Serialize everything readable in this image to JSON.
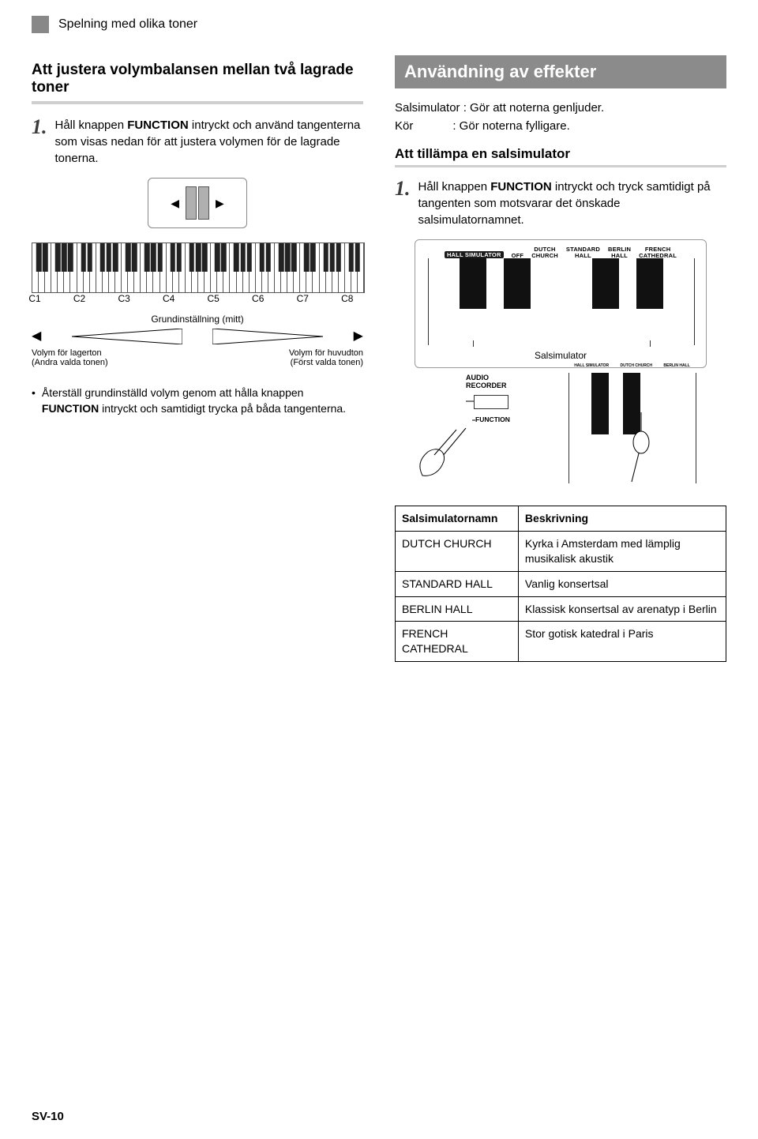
{
  "top_header": "Spelning med olika toner",
  "left": {
    "heading": "Att justera volymbalansen mellan två lagrade toner",
    "step1_num": "1.",
    "step1_pre": "Håll knappen ",
    "step1_kw": "FUNCTION",
    "step1_post": " intryckt och använd tangenterna som visas nedan för att justera volymen för de lagrade tonerna.",
    "kb": {
      "octaves": [
        "C1",
        "C2",
        "C3",
        "C4",
        "C5",
        "C6",
        "C7",
        "C8"
      ],
      "mid_label": "Grundinställning (mitt)",
      "left_label_line1": "Volym för lagerton",
      "left_label_line2": "(Andra valda tonen)",
      "right_label_line1": "Volym för huvudton",
      "right_label_line2": "(Först valda tonen)"
    },
    "bullet_text_pre": "Återställ grundinställd volym genom att hålla knappen ",
    "bullet_kw": "FUNCTION",
    "bullet_text_post": " intryckt och samtidigt trycka på båda tangenterna."
  },
  "right": {
    "box_heading": "Användning av effekter",
    "def_line1": "Salsimulator : Gör att noterna genljuder.",
    "def_line2": "Kör            : Gör noterna fylligare.",
    "subheading": "Att tillämpa en salsimulator",
    "step1_num": "1.",
    "step1_pre": "Håll knappen ",
    "step1_kw": "FUNCTION",
    "step1_post": " intryckt och tryck samtidigt på tangenten som motsvarar det önskade salsimulatornamnet.",
    "panel": {
      "pill": "HALL SIMULATOR",
      "lbls": [
        "OFF",
        "DUTCH\nCHURCH",
        "STANDARD\nHALL",
        "BERLIN\nHALL",
        "FRENCH\nCATHEDRAL"
      ]
    },
    "zoom_caption": "Salsimulator",
    "func": {
      "audio": "AUDIO\nRECORDER",
      "function": "FUNCTION"
    },
    "table": {
      "headers": [
        "Salsimulatornamn",
        "Beskrivning"
      ],
      "rows": [
        [
          "DUTCH CHURCH",
          "Kyrka i Amsterdam med lämplig musikalisk akustik"
        ],
        [
          "STANDARD HALL",
          "Vanlig konsertsal"
        ],
        [
          "BERLIN HALL",
          "Klassisk konsertsal av arenatyp i Berlin"
        ],
        [
          "FRENCH CATHEDRAL",
          "Stor gotisk katedral i Paris"
        ]
      ]
    }
  },
  "footer": "SV-10"
}
